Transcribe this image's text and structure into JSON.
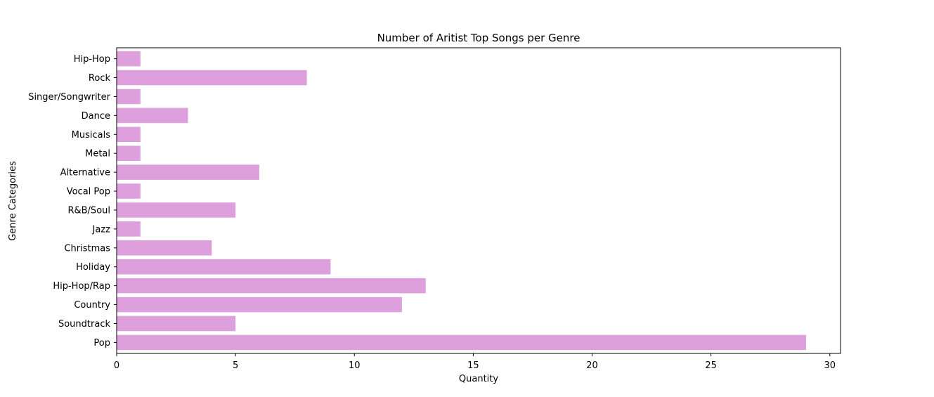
{
  "chart_data": {
    "type": "bar",
    "orientation": "horizontal",
    "title": "Number of Aritist Top Songs per Genre",
    "xlabel": "Quantity",
    "ylabel": "Genre Categories",
    "categories": [
      "Pop",
      "Soundtrack",
      "Country",
      "Hip-Hop/Rap",
      "Holiday",
      "Christmas",
      "Jazz",
      "R&B/Soul",
      "Vocal Pop",
      "Alternative",
      "Metal",
      "Musicals",
      "Dance",
      "Singer/Songwriter",
      "Rock",
      "Hip-Hop"
    ],
    "values": [
      29,
      5,
      12,
      13,
      9,
      4,
      1,
      5,
      1,
      6,
      1,
      1,
      3,
      1,
      8,
      1
    ],
    "xlim": [
      0,
      30.45
    ],
    "xticks": [
      0,
      5,
      10,
      15,
      20,
      25,
      30
    ],
    "bar_color": "#dda0dd",
    "grid": false,
    "legend": "none"
  }
}
